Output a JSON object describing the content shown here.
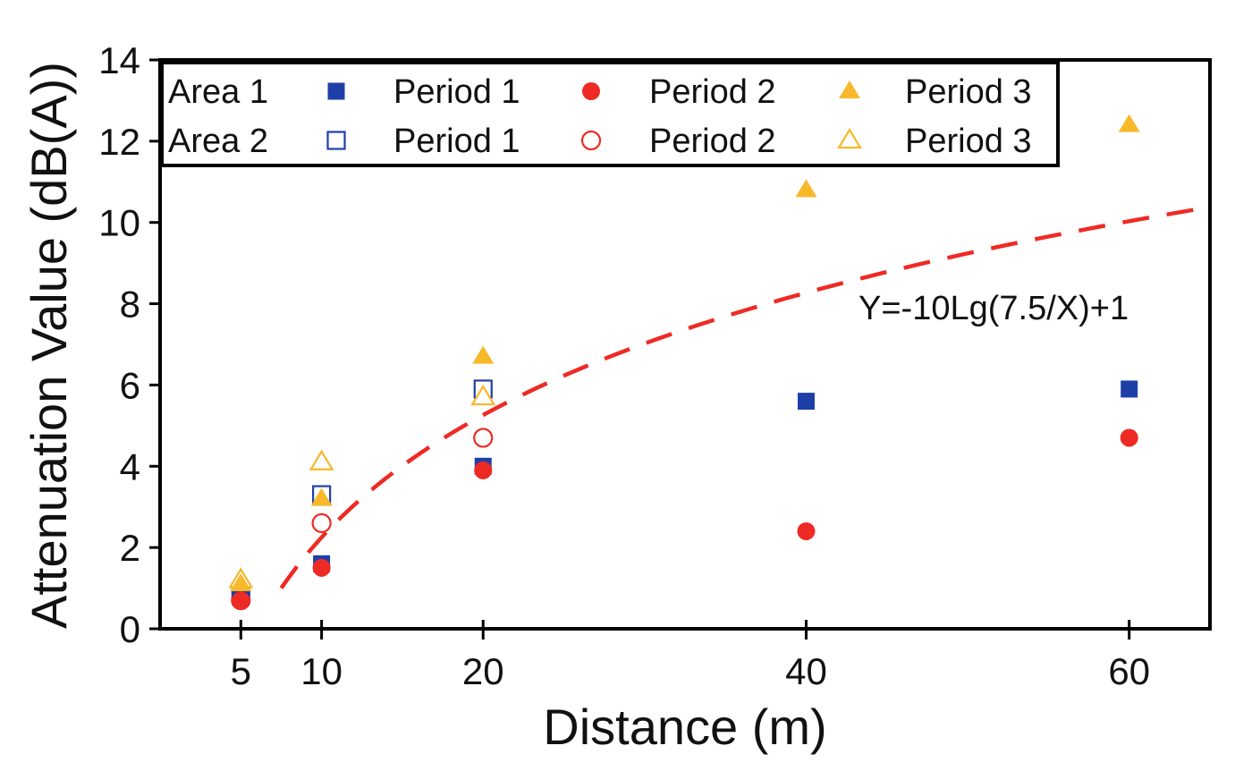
{
  "chart_data": {
    "type": "scatter",
    "xlabel": "Distance (m)",
    "ylabel": "Attenuation Value (dB(A))",
    "xlim": [
      0,
      65
    ],
    "ylim": [
      0,
      14
    ],
    "xticks": [
      5,
      10,
      20,
      40,
      60
    ],
    "xtick_labels": [
      "5",
      "10",
      "20",
      "40",
      "60"
    ],
    "yticks": [
      0,
      2,
      4,
      6,
      8,
      10,
      12,
      14
    ],
    "ytick_labels": [
      "0",
      "2",
      "4",
      "6",
      "8",
      "10",
      "12",
      "14"
    ],
    "grid": false,
    "legend_position": "top-left",
    "legend": {
      "area_labels": [
        "Area 1",
        "Area 2"
      ],
      "period_labels": [
        "Period 1",
        "Period 2",
        "Period 3"
      ]
    },
    "series": [
      {
        "name": "Area 1 Period 1",
        "marker": "square",
        "filled": true,
        "color": "#1f3fa8",
        "points": [
          [
            5,
            0.8
          ],
          [
            10,
            1.6
          ],
          [
            20,
            4.0
          ],
          [
            40,
            5.6
          ],
          [
            60,
            5.9
          ]
        ]
      },
      {
        "name": "Area 1 Period 2",
        "marker": "circle",
        "filled": true,
        "color": "#ee2a24",
        "points": [
          [
            5,
            0.7
          ],
          [
            10,
            1.5
          ],
          [
            20,
            3.9
          ],
          [
            40,
            2.4
          ],
          [
            60,
            4.7
          ]
        ]
      },
      {
        "name": "Area 1 Period 3",
        "marker": "triangle",
        "filled": true,
        "color": "#f7b82a",
        "points": [
          [
            5,
            1.1
          ],
          [
            10,
            3.2
          ],
          [
            20,
            6.7
          ],
          [
            40,
            10.8
          ],
          [
            60,
            12.4
          ]
        ]
      },
      {
        "name": "Area 2 Period 1",
        "marker": "square",
        "filled": false,
        "color": "#1f3fa8",
        "points": [
          [
            5,
            0.9
          ],
          [
            10,
            3.3
          ],
          [
            20,
            5.9
          ]
        ]
      },
      {
        "name": "Area 2 Period 2",
        "marker": "circle",
        "filled": false,
        "color": "#ee2a24",
        "points": [
          [
            5,
            0.7
          ],
          [
            10,
            2.6
          ],
          [
            20,
            4.7
          ]
        ]
      },
      {
        "name": "Area 2 Period 3",
        "marker": "triangle",
        "filled": false,
        "color": "#f7b82a",
        "points": [
          [
            5,
            1.2
          ],
          [
            10,
            4.1
          ],
          [
            20,
            5.7
          ]
        ]
      }
    ],
    "fit": {
      "label": "Y=-10Lg(7.5/X)+1",
      "coef": 10,
      "ref_distance": 7.5,
      "offset": 1,
      "x_range": [
        7.5,
        65
      ],
      "color": "#ee2a24",
      "style": "dashed"
    }
  }
}
